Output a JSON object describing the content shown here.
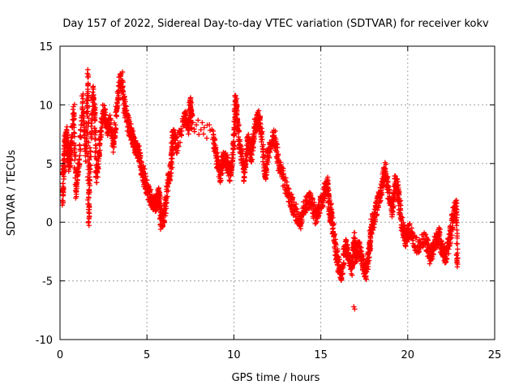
{
  "chart_data": {
    "type": "scatter",
    "title": "Day 157 of 2022, Sidereal Day-to-day VTEC variation (SDTVAR) for receiver kokv",
    "xlabel": "GPS time / hours",
    "ylabel": "SDTVAR / TECUs",
    "xlim": [
      0,
      25
    ],
    "ylim": [
      -10,
      15
    ],
    "xticks": [
      0,
      5,
      10,
      15,
      20,
      25
    ],
    "yticks": [
      -10,
      -5,
      0,
      5,
      10,
      15
    ],
    "xtick_labels": [
      "0",
      "5",
      "10",
      "15",
      "20",
      "25"
    ],
    "ytick_labels": [
      "-10",
      "-5",
      "0",
      "5",
      "10",
      "15"
    ],
    "grid": true,
    "marker": "+",
    "color": "#ff0000",
    "series": [
      {
        "name": "SDTVAR",
        "path": [
          [
            0.15,
            1.8
          ],
          [
            0.2,
            4.5
          ],
          [
            0.3,
            7.0
          ],
          [
            0.4,
            7.5
          ],
          [
            0.5,
            5.0
          ],
          [
            0.6,
            5.5
          ],
          [
            0.8,
            9.5
          ],
          [
            0.9,
            2.5
          ],
          [
            1.1,
            5.0
          ],
          [
            1.3,
            10.5
          ],
          [
            1.5,
            5.5
          ],
          [
            1.6,
            12.8
          ],
          [
            1.65,
            0.0
          ],
          [
            1.7,
            4.5
          ],
          [
            1.9,
            11.0
          ],
          [
            2.0,
            9.0
          ],
          [
            2.1,
            3.5
          ],
          [
            2.3,
            7.0
          ],
          [
            2.5,
            9.5
          ],
          [
            2.7,
            8.0
          ],
          [
            2.9,
            8.5
          ],
          [
            3.1,
            6.5
          ],
          [
            3.3,
            10.5
          ],
          [
            3.5,
            12.5
          ],
          [
            3.7,
            10.0
          ],
          [
            3.9,
            8.5
          ],
          [
            4.1,
            7.5
          ],
          [
            4.3,
            6.5
          ],
          [
            4.5,
            6.0
          ],
          [
            4.7,
            4.5
          ],
          [
            4.9,
            3.5
          ],
          [
            5.1,
            2.5
          ],
          [
            5.3,
            1.8
          ],
          [
            5.5,
            1.5
          ],
          [
            5.7,
            2.5
          ],
          [
            5.8,
            0.0
          ],
          [
            6.0,
            0.5
          ],
          [
            6.2,
            3.5
          ],
          [
            6.4,
            5.0
          ],
          [
            6.5,
            7.5
          ],
          [
            6.7,
            6.5
          ],
          [
            7.2,
            9.0
          ],
          [
            7.4,
            8.0
          ],
          [
            7.5,
            10.3
          ],
          [
            7.6,
            8.5
          ],
          [
            8.8,
            7.5
          ],
          [
            9.0,
            5.5
          ],
          [
            9.2,
            4.0
          ],
          [
            9.4,
            5.5
          ],
          [
            9.6,
            5.0
          ],
          [
            9.8,
            4.0
          ],
          [
            10.0,
            7.0
          ],
          [
            10.1,
            10.5
          ],
          [
            10.2,
            8.5
          ],
          [
            10.4,
            6.0
          ],
          [
            10.6,
            4.0
          ],
          [
            10.8,
            7.0
          ],
          [
            11.0,
            5.5
          ],
          [
            11.2,
            8.0
          ],
          [
            11.4,
            9.0
          ],
          [
            11.6,
            7.5
          ],
          [
            11.8,
            4.0
          ],
          [
            12.0,
            6.0
          ],
          [
            12.3,
            7.5
          ],
          [
            12.6,
            5.0
          ],
          [
            12.9,
            3.5
          ],
          [
            13.2,
            2.0
          ],
          [
            13.5,
            1.0
          ],
          [
            13.8,
            0.0
          ],
          [
            14.1,
            1.5
          ],
          [
            14.4,
            2.0
          ],
          [
            14.7,
            0.5
          ],
          [
            15.0,
            1.5
          ],
          [
            15.2,
            2.5
          ],
          [
            15.4,
            3.5
          ],
          [
            15.5,
            0.5
          ],
          [
            15.6,
            1.0
          ],
          [
            15.8,
            -2.0
          ],
          [
            16.0,
            -3.5
          ],
          [
            16.2,
            -4.5
          ],
          [
            16.4,
            -2.0
          ],
          [
            16.6,
            -3.0
          ],
          [
            16.8,
            -4.0
          ],
          [
            16.9,
            -1.5
          ],
          [
            17.0,
            -3.0
          ],
          [
            17.2,
            -2.0
          ],
          [
            17.4,
            -3.5
          ],
          [
            17.6,
            -4.5
          ],
          [
            17.8,
            -2.5
          ],
          [
            17.9,
            -0.5
          ],
          [
            18.1,
            0.5
          ],
          [
            18.3,
            2.0
          ],
          [
            18.5,
            3.0
          ],
          [
            18.7,
            4.5
          ],
          [
            18.9,
            2.5
          ],
          [
            19.1,
            1.0
          ],
          [
            19.3,
            3.5
          ],
          [
            19.5,
            2.0
          ],
          [
            19.7,
            -0.5
          ],
          [
            19.9,
            -1.5
          ],
          [
            20.1,
            -0.5
          ],
          [
            20.5,
            -2.0
          ],
          [
            21.0,
            -1.5
          ],
          [
            21.3,
            -3.0
          ],
          [
            21.5,
            -2.0
          ],
          [
            21.8,
            -1.0
          ],
          [
            22.0,
            -2.5
          ],
          [
            22.2,
            -3.0
          ],
          [
            22.4,
            -1.5
          ],
          [
            22.6,
            0.5
          ],
          [
            22.8,
            1.5
          ],
          [
            22.85,
            -3.8
          ]
        ],
        "jitter": 1.4,
        "points_per_segment": 30,
        "isolated": [
          [
            16.9,
            -7.2
          ],
          [
            16.95,
            -7.4
          ],
          [
            10.1,
            10.8
          ],
          [
            3.6,
            12.8
          ],
          [
            1.6,
            13.0
          ],
          [
            7.5,
            10.4
          ]
        ]
      }
    ]
  }
}
